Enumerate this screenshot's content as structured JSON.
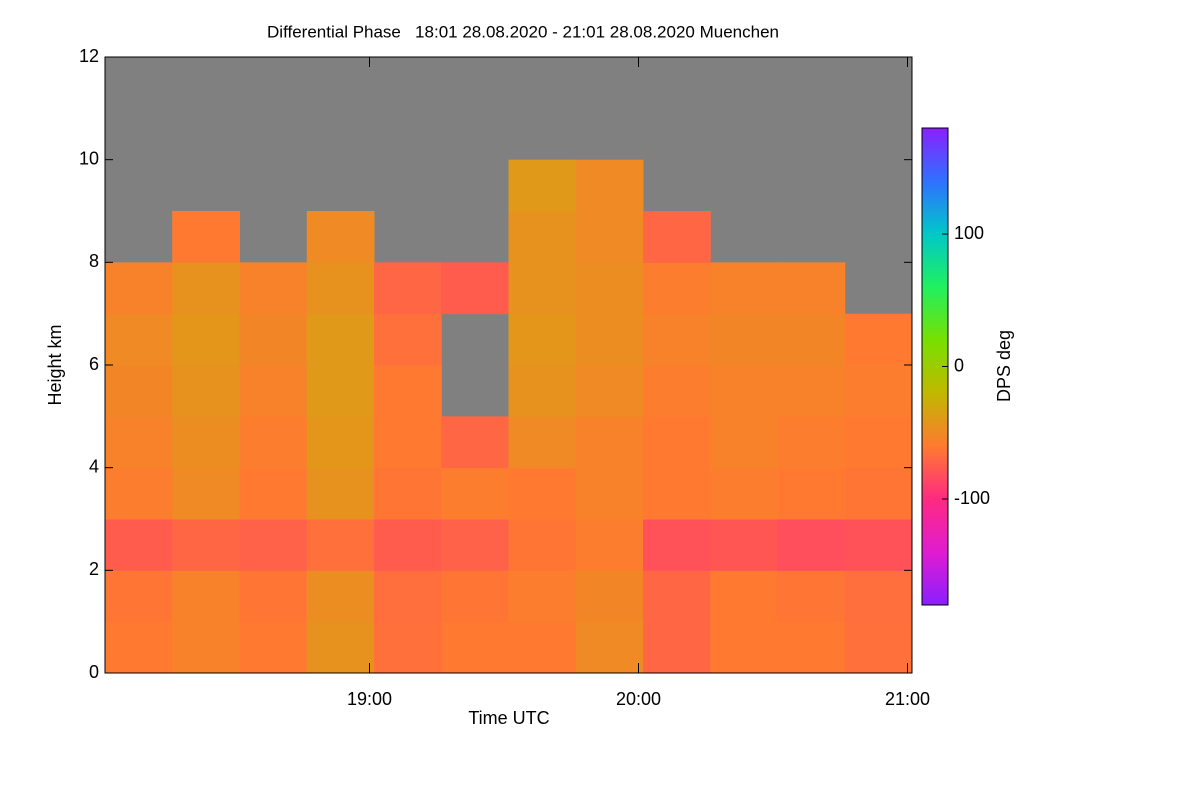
{
  "chart_data": {
    "type": "heatmap",
    "title": "Differential Phase   18:01 28.08.2020 - 21:01 28.08.2020 Muenchen",
    "x_label": "Time UTC",
    "y_label": "Height km",
    "colorbar_label": "DPS deg",
    "xbins": [
      18.0167,
      18.2667,
      18.5167,
      18.7667,
      19.0167,
      19.2667,
      19.5167,
      19.7667,
      20.0167,
      20.2667,
      20.5167,
      20.7667,
      21.0167
    ],
    "ybins": [
      0,
      1,
      2,
      3,
      4,
      5,
      6,
      7,
      8,
      9,
      10,
      11,
      12
    ],
    "z": [
      [
        -60,
        -55,
        -60,
        -45,
        -65,
        -60,
        -60,
        -50,
        -70,
        -60,
        -60,
        -65
      ],
      [
        -62,
        -55,
        -62,
        -48,
        -66,
        -62,
        -58,
        -52,
        -70,
        -60,
        -62,
        -66
      ],
      [
        -75,
        -70,
        -72,
        -65,
        -75,
        -72,
        -62,
        -58,
        -80,
        -78,
        -82,
        -80
      ],
      [
        -58,
        -50,
        -60,
        -45,
        -62,
        -58,
        -60,
        -55,
        -60,
        -58,
        -60,
        -62
      ],
      [
        -55,
        -48,
        -58,
        -42,
        -60,
        -70,
        -50,
        -55,
        -60,
        -55,
        -58,
        -60
      ],
      [
        -52,
        -45,
        -55,
        -40,
        -60,
        null,
        -45,
        -50,
        -58,
        -55,
        -55,
        -58
      ],
      [
        -50,
        -42,
        -52,
        -40,
        -65,
        null,
        -42,
        -48,
        -55,
        -52,
        -52,
        -60
      ],
      [
        -55,
        -45,
        -55,
        -45,
        -70,
        -75,
        -45,
        -48,
        -58,
        -55,
        -55,
        null
      ],
      [
        null,
        -60,
        null,
        -50,
        null,
        null,
        -45,
        -50,
        -70,
        null,
        null,
        null
      ],
      [
        null,
        null,
        null,
        null,
        null,
        null,
        -40,
        -50,
        null,
        null,
        null,
        null
      ],
      [
        null,
        null,
        null,
        null,
        null,
        null,
        null,
        null,
        null,
        null,
        null,
        null
      ],
      [
        null,
        null,
        null,
        null,
        null,
        null,
        null,
        null,
        null,
        null,
        null,
        null
      ]
    ],
    "xlim": [
      18.0167,
      21.0167
    ],
    "xticks": [
      {
        "value": 19,
        "label": "19:00"
      },
      {
        "value": 20,
        "label": "20:00"
      },
      {
        "value": 21,
        "label": "21:00"
      }
    ],
    "ylim": [
      0,
      12
    ],
    "yticks": [
      0,
      2,
      4,
      6,
      8,
      10,
      12
    ],
    "clim": [
      -180,
      180
    ],
    "cticks": [
      -100,
      0,
      100
    ],
    "colorscale": [
      "#8a1fff",
      "#e01cd0",
      "#ff2a80",
      "#ff7a30",
      "#c0b800",
      "#78e000",
      "#20f060",
      "#00c8c8",
      "#3070ff",
      "#8a20ff"
    ],
    "missing_color": "#808080"
  }
}
